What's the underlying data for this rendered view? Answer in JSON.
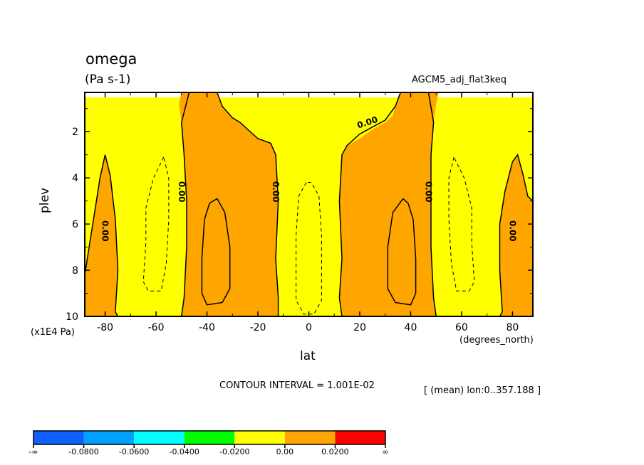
{
  "chart_data": {
    "type": "contour",
    "variable": "omega",
    "units": "(Pa s-1)",
    "run_name": "AGCM5_adj_flat3keq",
    "xlabel": "lat",
    "ylabel": "plev",
    "y_units_label": "(x1E4 Pa)",
    "x_units_label": "(degrees_north)",
    "xlim": [
      -88,
      88
    ],
    "ylim": [
      10,
      0.3
    ],
    "xticks": [
      -80,
      -60,
      -40,
      -20,
      0,
      20,
      40,
      60,
      80
    ],
    "xtick_labels": [
      "-80",
      "-60",
      "-40",
      "-20",
      "0",
      "20",
      "40",
      "60",
      "80"
    ],
    "yticks": [
      2,
      4,
      6,
      8,
      10
    ],
    "ytick_labels": [
      "2",
      "4",
      "6",
      "8",
      "10"
    ],
    "contour_interval_text": "CONTOUR INTERVAL = 1.001E-02",
    "mean_note": "[ (mean) lon:0..357.188 ]",
    "contour_labels": [
      "0.00",
      "0.00",
      "0.00",
      "0.00",
      "0.00",
      "0.00",
      "0.00"
    ],
    "colorbar": {
      "colors": [
        "#0f5fff",
        "#00a0ff",
        "#00ffff",
        "#00ff00",
        "#ffff00",
        "#ffa500",
        "#ff0000"
      ],
      "labels": [
        "-∞",
        "-0.0800",
        "-0.0600",
        "-0.0400",
        "-0.0200",
        "0.00",
        "0.0200",
        "∞"
      ]
    },
    "regions": [
      {
        "name": "zero-to-0.02",
        "color": "#ffa500",
        "polygon": [
          [
            -88,
            8.2
          ],
          [
            -86,
            6.8
          ],
          [
            -84,
            5.4
          ],
          [
            -82,
            4.0
          ],
          [
            -80,
            3.0
          ],
          [
            -78,
            3.9
          ],
          [
            -76,
            5.8
          ],
          [
            -75,
            8.0
          ],
          [
            -76,
            9.8
          ],
          [
            -75,
            10
          ],
          [
            -88,
            10
          ]
        ]
      },
      {
        "name": "zero-to-0.02",
        "color": "#ffa500",
        "polygon": [
          [
            -47,
            0.3
          ],
          [
            -36,
            0.3
          ],
          [
            -34,
            0.9
          ],
          [
            -30,
            1.4
          ],
          [
            -27,
            1.6
          ],
          [
            -24,
            1.9
          ],
          [
            -20,
            2.3
          ],
          [
            -15,
            2.5
          ],
          [
            -13,
            3.0
          ],
          [
            -12,
            5.0
          ],
          [
            -13,
            7.5
          ],
          [
            -12,
            9.2
          ],
          [
            -12,
            10
          ],
          [
            -50,
            10
          ],
          [
            -49,
            9.2
          ],
          [
            -48,
            7.0
          ],
          [
            -48,
            5.0
          ],
          [
            -49,
            3.0
          ],
          [
            -50,
            1.6
          ],
          [
            -51,
            0.8
          ],
          [
            -50,
            0.3
          ]
        ]
      },
      {
        "name": "zero-to-0.02",
        "color": "#ffa500",
        "polygon": [
          [
            36,
            0.3
          ],
          [
            47,
            0.3
          ],
          [
            51,
            0.3
          ],
          [
            50,
            0.8
          ],
          [
            49,
            1.6
          ],
          [
            48,
            3.0
          ],
          [
            48,
            5.0
          ],
          [
            48,
            7.0
          ],
          [
            49,
            9.2
          ],
          [
            50,
            10
          ],
          [
            13,
            10
          ],
          [
            12,
            9.2
          ],
          [
            13,
            7.5
          ],
          [
            12,
            5.0
          ],
          [
            13,
            3.0
          ],
          [
            15,
            2.6
          ],
          [
            20,
            2.3
          ],
          [
            25,
            1.9
          ],
          [
            30,
            1.6
          ],
          [
            33,
            1.3
          ],
          [
            34,
            0.9
          ]
        ]
      },
      {
        "name": "zero-to-0.02",
        "color": "#ffa500",
        "polygon": [
          [
            88,
            5.0
          ],
          [
            86,
            4.8
          ],
          [
            84,
            3.8
          ],
          [
            82,
            3.0
          ],
          [
            80,
            3.3
          ],
          [
            77,
            4.6
          ],
          [
            75,
            6.0
          ],
          [
            75,
            8.0
          ],
          [
            76,
            9.8
          ],
          [
            75,
            10
          ],
          [
            88,
            10
          ]
        ]
      }
    ],
    "solid_contours": [
      [
        [
          -47,
          0.3
        ],
        [
          -50,
          1.6
        ],
        [
          -49,
          3.0
        ],
        [
          -48,
          5.0
        ],
        [
          -48,
          7.0
        ],
        [
          -49,
          9.2
        ],
        [
          -50,
          10
        ]
      ],
      [
        [
          -88,
          8.2
        ],
        [
          -86,
          6.8
        ],
        [
          -84,
          5.4
        ],
        [
          -82,
          4.0
        ],
        [
          -80,
          3.0
        ],
        [
          -78,
          3.9
        ],
        [
          -76,
          5.8
        ],
        [
          -75,
          8.0
        ],
        [
          -76,
          9.8
        ],
        [
          -75,
          10
        ]
      ],
      [
        [
          -36,
          0.3
        ],
        [
          -34,
          0.9
        ],
        [
          -30,
          1.4
        ],
        [
          -27,
          1.6
        ],
        [
          -24,
          1.9
        ],
        [
          -20,
          2.3
        ],
        [
          -15,
          2.5
        ],
        [
          -13,
          3.0
        ],
        [
          -12,
          5.0
        ],
        [
          -13,
          7.5
        ],
        [
          -12,
          9.2
        ],
        [
          -12,
          10
        ]
      ],
      [
        [
          36,
          0.3
        ],
        [
          34,
          0.9
        ],
        [
          30,
          1.5
        ],
        [
          25,
          1.8
        ],
        [
          20,
          2.1
        ],
        [
          15,
          2.6
        ],
        [
          13,
          3.0
        ],
        [
          12,
          5.0
        ],
        [
          13,
          7.5
        ],
        [
          12,
          9.2
        ],
        [
          13,
          10
        ]
      ],
      [
        [
          47,
          0.3
        ],
        [
          49,
          1.6
        ],
        [
          48,
          3.0
        ],
        [
          48,
          5.0
        ],
        [
          48,
          7.0
        ],
        [
          49,
          9.2
        ],
        [
          50,
          10
        ]
      ],
      [
        [
          88,
          5.0
        ],
        [
          86,
          4.8
        ],
        [
          84,
          3.8
        ],
        [
          82,
          3.0
        ],
        [
          80,
          3.3
        ],
        [
          77,
          4.6
        ],
        [
          75,
          6.0
        ],
        [
          75,
          8.0
        ],
        [
          76,
          9.8
        ],
        [
          75,
          10
        ]
      ],
      [
        [
          -36,
          4.9
        ],
        [
          -39,
          5.1
        ],
        [
          -41,
          5.8
        ],
        [
          -42,
          7.5
        ],
        [
          -42,
          9.0
        ],
        [
          -40,
          9.5
        ],
        [
          -34,
          9.4
        ],
        [
          -31,
          8.8
        ],
        [
          -31,
          7.0
        ],
        [
          -33,
          5.5
        ],
        [
          -36,
          4.9
        ]
      ],
      [
        [
          37,
          4.9
        ],
        [
          33,
          5.5
        ],
        [
          31,
          7.0
        ],
        [
          31,
          8.8
        ],
        [
          34,
          9.4
        ],
        [
          40,
          9.5
        ],
        [
          42,
          9.0
        ],
        [
          42,
          7.5
        ],
        [
          41,
          5.8
        ],
        [
          39,
          5.1
        ],
        [
          37,
          4.9
        ]
      ]
    ],
    "dashed_contours": [
      [
        [
          -57,
          3.1
        ],
        [
          -61,
          4.0
        ],
        [
          -64,
          5.3
        ],
        [
          -64,
          6.8
        ],
        [
          -65,
          8.5
        ],
        [
          -63,
          8.9
        ],
        [
          -58,
          8.9
        ],
        [
          -56,
          7.7
        ],
        [
          -55,
          5.8
        ],
        [
          -55,
          4.0
        ],
        [
          -57,
          3.1
        ]
      ],
      [
        [
          -1,
          4.2
        ],
        [
          -4,
          4.8
        ],
        [
          -5,
          6.5
        ],
        [
          -5,
          8.3
        ],
        [
          -5,
          9.3
        ],
        [
          -2,
          9.9
        ],
        [
          2,
          9.9
        ],
        [
          5,
          9.3
        ],
        [
          5,
          8.3
        ],
        [
          5,
          6.5
        ],
        [
          4,
          4.8
        ],
        [
          1,
          4.2
        ],
        [
          -1,
          4.2
        ]
      ],
      [
        [
          57,
          3.1
        ],
        [
          55,
          4.0
        ],
        [
          55,
          5.8
        ],
        [
          56,
          7.7
        ],
        [
          58,
          8.9
        ],
        [
          63,
          8.9
        ],
        [
          65,
          8.5
        ],
        [
          64,
          6.8
        ],
        [
          64,
          5.3
        ],
        [
          61,
          4.0
        ],
        [
          57,
          3.1
        ]
      ]
    ]
  }
}
